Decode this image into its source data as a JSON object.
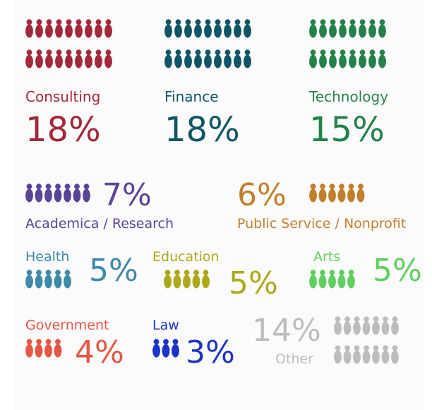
{
  "chart_data": {
    "type": "pictogram",
    "unit": "%",
    "categories": [
      {
        "label": "Consulting",
        "value": 18,
        "value_label": "18%",
        "color": "#a2283a"
      },
      {
        "label": "Finance",
        "value": 18,
        "value_label": "18%",
        "color": "#0f5565"
      },
      {
        "label": "Technology",
        "value": 15,
        "value_label": "15%",
        "color": "#24814a"
      },
      {
        "label": "Academica / Research",
        "value": 7,
        "value_label": "7%",
        "color": "#5a4496"
      },
      {
        "label": "Public Service / Nonprofit",
        "value": 6,
        "value_label": "6%",
        "color": "#c17f2c"
      },
      {
        "label": "Health",
        "value": 5,
        "value_label": "5%",
        "color": "#3e8aa8"
      },
      {
        "label": "Education",
        "value": 5,
        "value_label": "5%",
        "color": "#aca81a"
      },
      {
        "label": "Arts",
        "value": 5,
        "value_label": "5%",
        "color": "#5fcf60"
      },
      {
        "label": "Government",
        "value": 4,
        "value_label": "4%",
        "color": "#e65644"
      },
      {
        "label": "Law",
        "value": 3,
        "value_label": "3%",
        "color": "#1a33c8"
      },
      {
        "label": "Other",
        "value": 14,
        "value_label": "14%",
        "color": "#bdbdbd"
      }
    ]
  }
}
